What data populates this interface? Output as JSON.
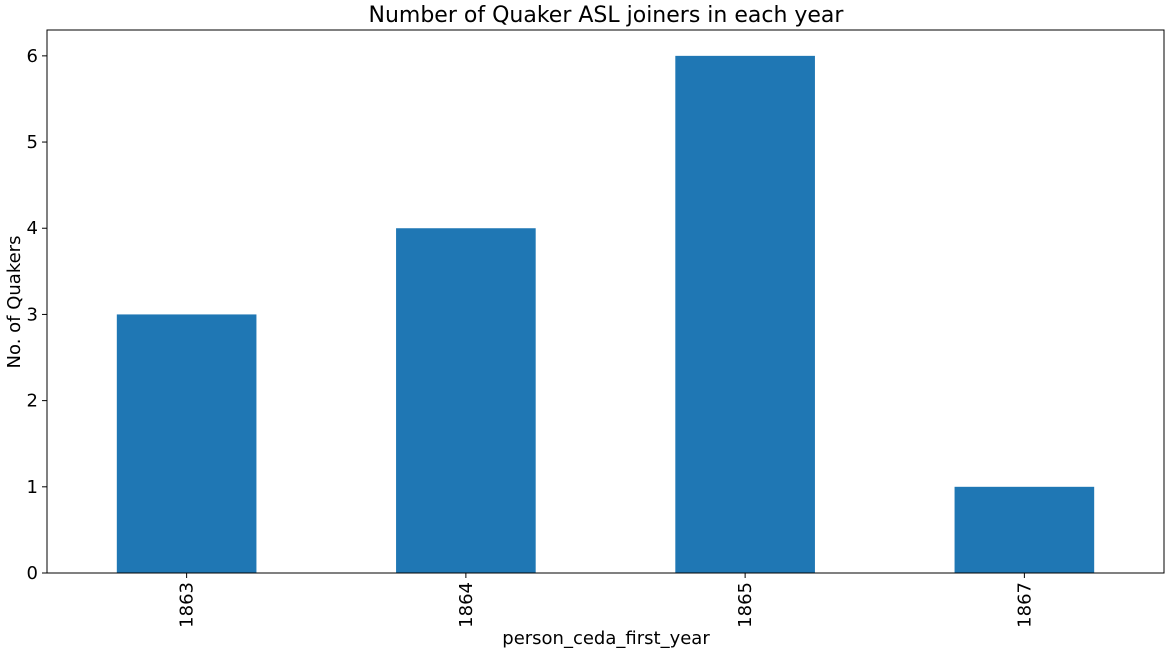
{
  "chart_data": {
    "type": "bar",
    "title": "Number of Quaker ASL joiners in each year",
    "xlabel": "person_ceda_first_year",
    "ylabel": "No. of Quakers",
    "categories": [
      "1863",
      "1864",
      "1865",
      "1867"
    ],
    "values": [
      3,
      4,
      6,
      1
    ],
    "ylim": [
      0,
      6.3
    ],
    "yticks": [
      0,
      1,
      2,
      3,
      4,
      5,
      6
    ],
    "bar_color": "#1f77b4",
    "grid": false,
    "legend": "none"
  }
}
